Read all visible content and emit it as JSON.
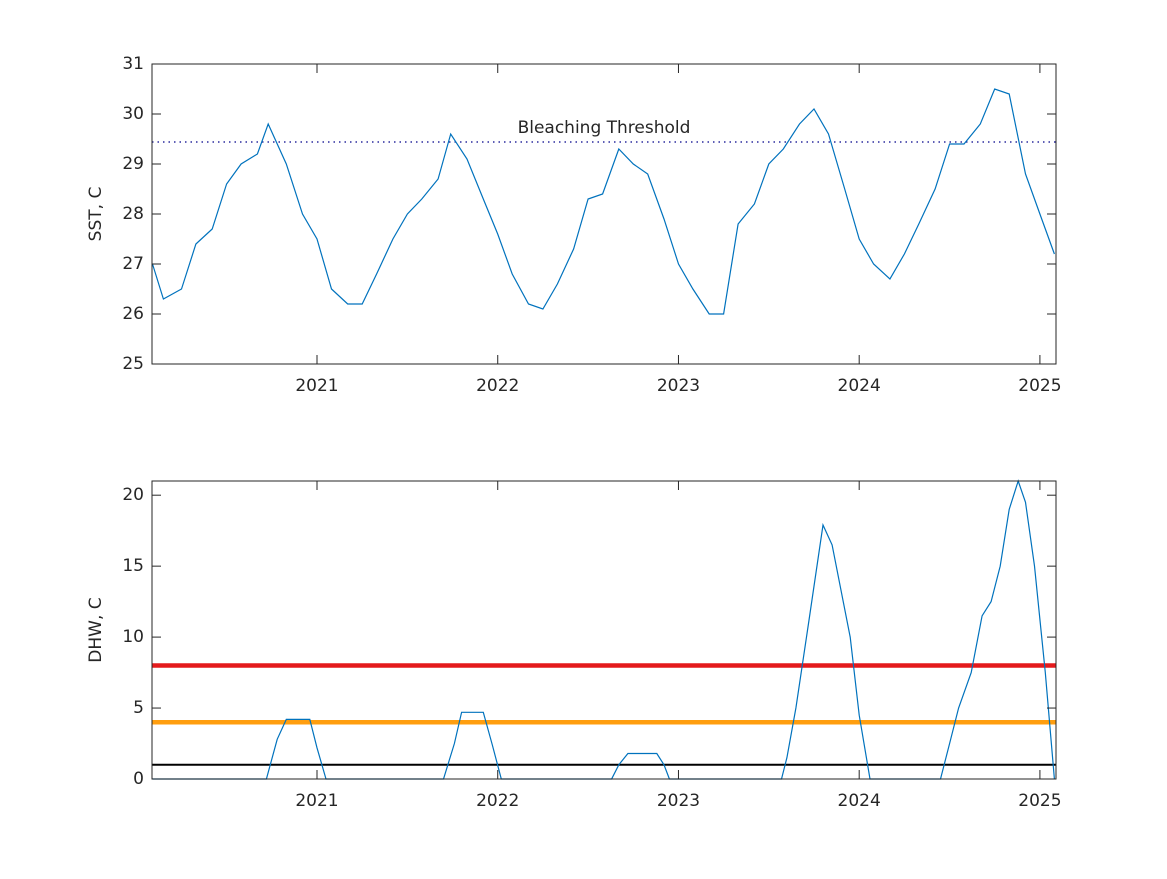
{
  "chart_data": [
    {
      "type": "line",
      "ylabel": "SST, C",
      "x": [
        2020.09,
        2020.15,
        2020.25,
        2020.33,
        2020.42,
        2020.5,
        2020.58,
        2020.67,
        2020.73,
        2020.83,
        2020.92,
        2021.0,
        2021.08,
        2021.17,
        2021.25,
        2021.33,
        2021.42,
        2021.5,
        2021.58,
        2021.67,
        2021.74,
        2021.83,
        2021.92,
        2022.0,
        2022.08,
        2022.17,
        2022.25,
        2022.33,
        2022.42,
        2022.5,
        2022.58,
        2022.67,
        2022.75,
        2022.83,
        2022.92,
        2023.0,
        2023.08,
        2023.17,
        2023.25,
        2023.33,
        2023.42,
        2023.5,
        2023.58,
        2023.67,
        2023.75,
        2023.83,
        2023.92,
        2024.0,
        2024.08,
        2024.17,
        2024.25,
        2024.33,
        2024.42,
        2024.5,
        2024.58,
        2024.67,
        2024.75,
        2024.83,
        2024.92,
        2025.0,
        2025.08
      ],
      "series": [
        {
          "color": "#0072bd",
          "values": [
            27.0,
            26.3,
            26.5,
            27.4,
            27.7,
            28.6,
            29.0,
            29.2,
            29.8,
            29.0,
            28.0,
            27.5,
            26.5,
            26.2,
            26.2,
            26.8,
            27.5,
            28.0,
            28.3,
            28.7,
            29.6,
            29.1,
            28.3,
            27.6,
            26.8,
            26.2,
            26.1,
            26.6,
            27.3,
            28.3,
            28.4,
            29.3,
            29.0,
            28.8,
            27.9,
            27.0,
            26.5,
            26.0,
            26.0,
            27.8,
            28.2,
            29.0,
            29.3,
            29.8,
            30.1,
            29.6,
            28.5,
            27.5,
            27.0,
            26.7,
            27.2,
            27.8,
            28.5,
            29.4,
            29.4,
            29.8,
            30.5,
            30.4,
            28.8,
            28.0,
            27.2
          ]
        }
      ],
      "threshold": {
        "label": "Bleaching Threshold",
        "value": 29.44,
        "color": "#00008b"
      },
      "xlim": [
        2020.087,
        2025.089
      ],
      "xticks": [
        2021,
        2022,
        2023,
        2024,
        2025
      ],
      "ylim": [
        25,
        31
      ],
      "yticks": [
        25,
        26,
        27,
        28,
        29,
        30,
        31
      ]
    },
    {
      "type": "line",
      "ylabel": "DHW, C",
      "x": [
        2020.09,
        2020.72,
        2020.78,
        2020.83,
        2020.96,
        2021.0,
        2021.05,
        2021.7,
        2021.76,
        2021.8,
        2021.92,
        2021.97,
        2022.02,
        2022.63,
        2022.67,
        2022.72,
        2022.88,
        2022.92,
        2022.95,
        2023.57,
        2023.6,
        2023.65,
        2023.72,
        2023.8,
        2023.85,
        2023.95,
        2024.0,
        2024.06,
        2024.45,
        2024.5,
        2024.55,
        2024.62,
        2024.68,
        2024.73,
        2024.78,
        2024.83,
        2024.88,
        2024.92,
        2024.97,
        2025.03,
        2025.08
      ],
      "series": [
        {
          "color": "#0072bd",
          "values": [
            0,
            0,
            2.8,
            4.2,
            4.2,
            2.2,
            0,
            0,
            2.5,
            4.7,
            4.7,
            2.4,
            0,
            0,
            1.0,
            1.8,
            1.8,
            1.0,
            0,
            0,
            1.5,
            5.0,
            11.0,
            17.9,
            16.5,
            10.0,
            4.5,
            0,
            0,
            2.5,
            5.0,
            7.5,
            11.5,
            12.5,
            15.0,
            19.0,
            21.0,
            19.5,
            15.0,
            7.5,
            0
          ]
        }
      ],
      "hlines": [
        {
          "value": 8,
          "color": "#e41a1c"
        },
        {
          "value": 4,
          "color": "#ff9e0f"
        },
        {
          "value": 1,
          "color": "#000000"
        }
      ],
      "xlim": [
        2020.087,
        2025.089
      ],
      "xticks": [
        2021,
        2022,
        2023,
        2024,
        2025
      ],
      "ylim": [
        0,
        21
      ],
      "yticks": [
        0,
        5,
        10,
        15,
        20
      ]
    }
  ]
}
